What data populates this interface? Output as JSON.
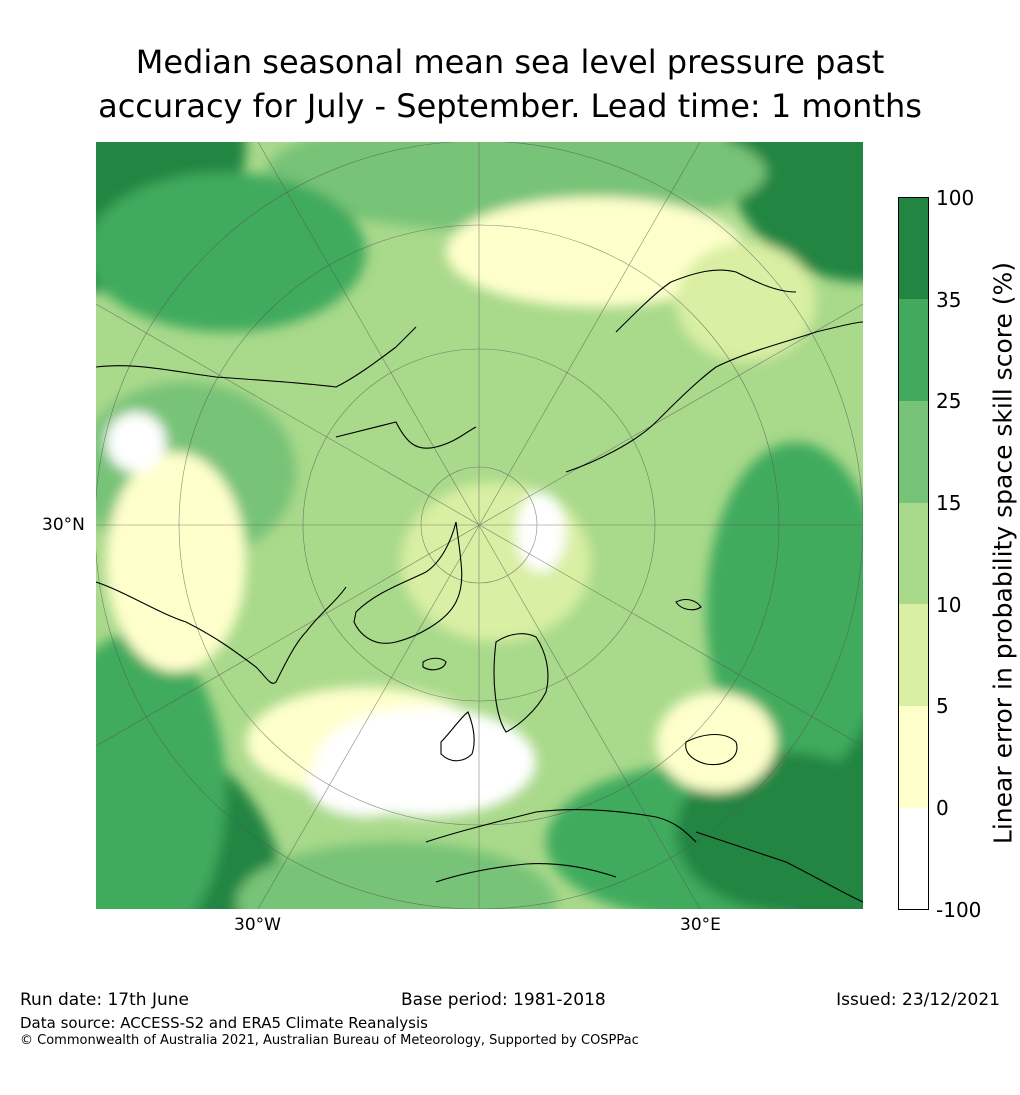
{
  "header": {
    "title_line1": "Median seasonal mean sea level pressure past",
    "title_line2": "accuracy for July - September. Lead time: 1 months"
  },
  "map": {
    "projection": "north polar stereographic",
    "labels": {
      "lat_30n": "30°N",
      "lon_30w": "30°W",
      "lon_30e": "30°E"
    },
    "fill_colors": {
      "dark_green": "#228542",
      "green": "#41aa5d",
      "mid_green": "#77c377",
      "light_green": "#a9d98b",
      "pale_green": "#d9efa3",
      "pale_yellow": "#ffffcc",
      "white": "#ffffff"
    }
  },
  "colorbar": {
    "title": "Linear error in probability space skill score (%)",
    "ticks": [
      "100",
      "35",
      "25",
      "15",
      "10",
      "5",
      "0",
      "-100"
    ],
    "colors": [
      "#228542",
      "#41aa5d",
      "#77c377",
      "#a9d98b",
      "#d9efa3",
      "#ffffcc",
      "#ffffff"
    ]
  },
  "footer": {
    "run_date": "Run date: 17th June",
    "base_period": "Base period: 1981-2018",
    "issued": "Issued: 23/12/2021",
    "data_source": "Data source: ACCESS-S2 and ERA5 Climate Reanalysis",
    "copyright": "© Commonwealth of Australia 2021, Australian Bureau of Meteorology, Supported by COSPPac"
  }
}
